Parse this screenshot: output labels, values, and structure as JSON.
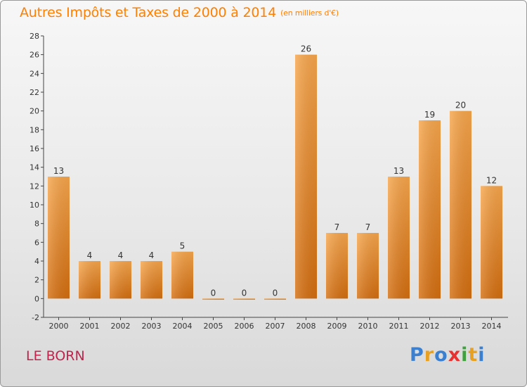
{
  "header": {
    "title": "Autres Impôts et Taxes de 2000 à 2014",
    "unit": "(en milliers d'€)"
  },
  "footer": {
    "commune": "LE BORN",
    "logo": "Proxiti",
    "logo_colors": [
      "#3a7fd0",
      "#e8a020",
      "#3a7fd0",
      "#e83030",
      "#40a040",
      "#e8a020",
      "#3a7fd0"
    ]
  },
  "chart_data": {
    "type": "bar",
    "categories": [
      "2000",
      "2001",
      "2002",
      "2003",
      "2004",
      "2005",
      "2006",
      "2007",
      "2008",
      "2009",
      "2010",
      "2011",
      "2012",
      "2013",
      "2014"
    ],
    "values": [
      13,
      4,
      4,
      4,
      5,
      0,
      0,
      0,
      26,
      7,
      7,
      13,
      19,
      20,
      12
    ],
    "title": "Autres Impôts et Taxes de 2000 à 2014",
    "ylim": [
      -2,
      28
    ],
    "yticks": [
      -2,
      0,
      2,
      4,
      6,
      8,
      10,
      12,
      14,
      16,
      18,
      20,
      22,
      24,
      26,
      28
    ],
    "bar_color": "#f0922e",
    "grid": false,
    "data_labels": true
  }
}
